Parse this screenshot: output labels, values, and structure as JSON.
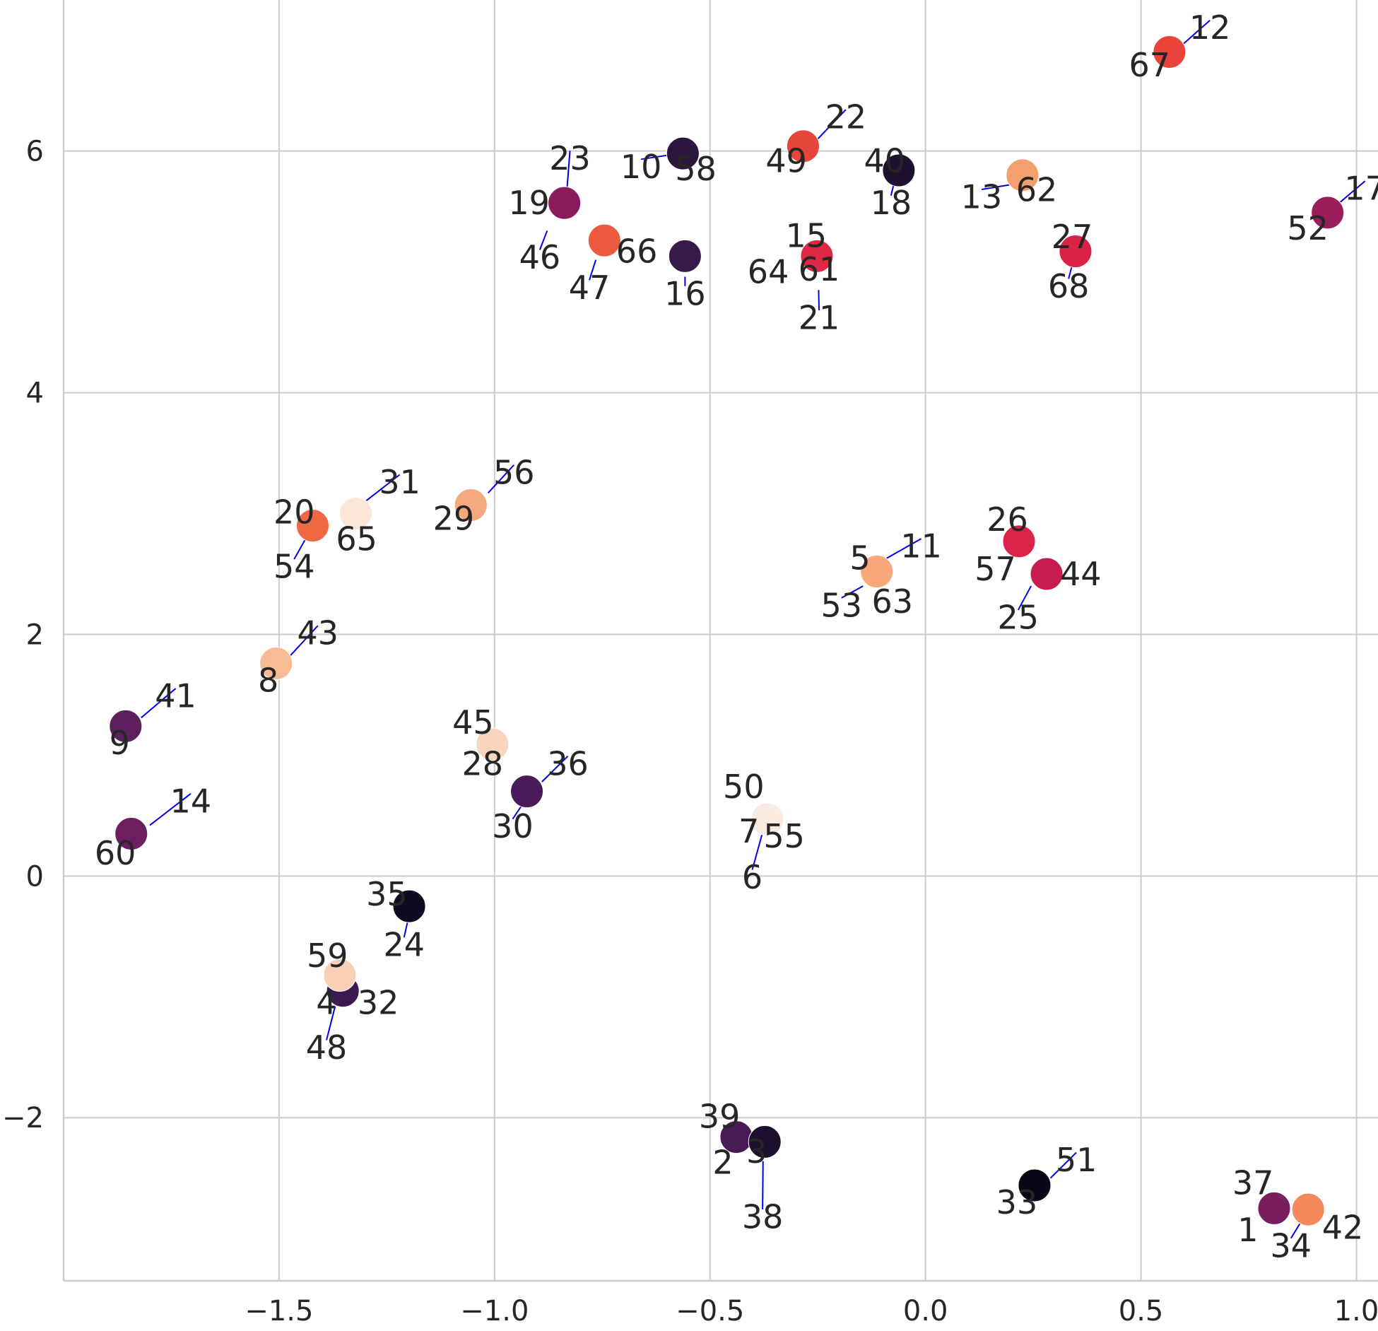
{
  "chart_data": {
    "type": "scatter",
    "title": "",
    "xlabel": "",
    "ylabel": "",
    "xlim": [
      -2.0,
      1.05
    ],
    "ylim": [
      -3.35,
      7.25
    ],
    "grid": true,
    "legend": "none",
    "x_ticks": [
      {
        "value": -1.5,
        "label": "−1.5"
      },
      {
        "value": -1.0,
        "label": "−1.0"
      },
      {
        "value": -0.5,
        "label": "−0.5"
      },
      {
        "value": 0.0,
        "label": "0.0"
      },
      {
        "value": 0.5,
        "label": "0.5"
      },
      {
        "value": 1.0,
        "label": "1.0"
      }
    ],
    "y_ticks": [
      {
        "value": -2,
        "label": "−2"
      },
      {
        "value": 0,
        "label": "0"
      },
      {
        "value": 2,
        "label": "2"
      },
      {
        "value": 4,
        "label": "4"
      },
      {
        "value": 6,
        "label": "6"
      }
    ],
    "points": [
      {
        "x": 0.566,
        "y": 6.82,
        "color": "#e8443a"
      },
      {
        "x": -0.284,
        "y": 6.04,
        "color": "#e4463a"
      },
      {
        "x": -0.563,
        "y": 5.98,
        "color": "#2c1640"
      },
      {
        "x": -0.062,
        "y": 5.84,
        "color": "#1f1030"
      },
      {
        "x": 0.225,
        "y": 5.8,
        "color": "#f4a06e"
      },
      {
        "x": -0.838,
        "y": 5.57,
        "color": "#8a1c5e"
      },
      {
        "x": 0.933,
        "y": 5.49,
        "color": "#9b1d5a"
      },
      {
        "x": -0.745,
        "y": 5.26,
        "color": "#ee5a3f"
      },
      {
        "x": 0.348,
        "y": 5.17,
        "color": "#db2146"
      },
      {
        "x": -0.558,
        "y": 5.13,
        "color": "#361a4a"
      },
      {
        "x": -0.252,
        "y": 5.13,
        "color": "#df2847"
      },
      {
        "x": -1.055,
        "y": 3.07,
        "color": "#f5a97f"
      },
      {
        "x": -1.322,
        "y": 3.0,
        "color": "#fbe6d8"
      },
      {
        "x": -1.422,
        "y": 2.9,
        "color": "#f06843"
      },
      {
        "x": 0.217,
        "y": 2.77,
        "color": "#dc2248"
      },
      {
        "x": -0.113,
        "y": 2.52,
        "color": "#f7a77a"
      },
      {
        "x": 0.281,
        "y": 2.5,
        "color": "#c81b4f"
      },
      {
        "x": -1.507,
        "y": 1.76,
        "color": "#f8bb94"
      },
      {
        "x": -1.856,
        "y": 1.24,
        "color": "#5c1f5d"
      },
      {
        "x": -1.005,
        "y": 1.09,
        "color": "#f9d5be"
      },
      {
        "x": -0.925,
        "y": 0.7,
        "color": "#4a1a5a"
      },
      {
        "x": -1.843,
        "y": 0.35,
        "color": "#6c1e5f"
      },
      {
        "x": -0.367,
        "y": 0.47,
        "color": "#fbeadf"
      },
      {
        "x": -1.198,
        "y": -0.25,
        "color": "#100a22"
      },
      {
        "x": -1.352,
        "y": -0.95,
        "color": "#3b1a50"
      },
      {
        "x": -1.359,
        "y": -0.82,
        "color": "#f9d0b6"
      },
      {
        "x": -0.439,
        "y": -2.16,
        "color": "#4a1a56"
      },
      {
        "x": -0.373,
        "y": -2.2,
        "color": "#1c102e"
      },
      {
        "x": 0.253,
        "y": -2.56,
        "color": "#0a0618"
      },
      {
        "x": 0.809,
        "y": -2.75,
        "color": "#7a1d5e"
      },
      {
        "x": 0.888,
        "y": -2.76,
        "color": "#f48a5c"
      }
    ],
    "labels": [
      {
        "text": "12",
        "x": 0.66,
        "y": 7.0,
        "lx": 0.59,
        "ly": 6.86
      },
      {
        "text": "67",
        "x": 0.52,
        "y": 6.69
      },
      {
        "text": "22",
        "x": -0.185,
        "y": 6.26,
        "lx": -0.25,
        "ly": 6.1
      },
      {
        "text": "49",
        "x": -0.323,
        "y": 5.9
      },
      {
        "text": "10",
        "x": -0.66,
        "y": 5.85,
        "lx": -0.59,
        "ly": 5.97
      },
      {
        "text": "58",
        "x": -0.533,
        "y": 5.83
      },
      {
        "text": "40",
        "x": -0.095,
        "y": 5.9
      },
      {
        "text": "18",
        "x": -0.08,
        "y": 5.55,
        "lx": -0.07,
        "ly": 5.78
      },
      {
        "text": "13",
        "x": 0.13,
        "y": 5.6,
        "lx": 0.195,
        "ly": 5.72
      },
      {
        "text": "62",
        "x": 0.258,
        "y": 5.66
      },
      {
        "text": "23",
        "x": -0.825,
        "y": 5.92,
        "lx": -0.832,
        "ly": 5.68
      },
      {
        "text": "19",
        "x": -0.92,
        "y": 5.55
      },
      {
        "text": "46",
        "x": -0.895,
        "y": 5.1,
        "lx": -0.878,
        "ly": 5.34
      },
      {
        "text": "66",
        "x": -0.67,
        "y": 5.15
      },
      {
        "text": "47",
        "x": -0.78,
        "y": 4.85,
        "lx": -0.765,
        "ly": 5.1
      },
      {
        "text": "16",
        "x": -0.558,
        "y": 4.8,
        "lx": -0.558,
        "ly": 4.96
      },
      {
        "text": "15",
        "x": -0.277,
        "y": 5.28
      },
      {
        "text": "64",
        "x": -0.365,
        "y": 4.98
      },
      {
        "text": "61",
        "x": -0.247,
        "y": 5.0
      },
      {
        "text": "21",
        "x": -0.247,
        "y": 4.6,
        "lx": -0.248,
        "ly": 4.85
      },
      {
        "text": "17",
        "x": 1.02,
        "y": 5.67,
        "lx": 0.96,
        "ly": 5.57
      },
      {
        "text": "52",
        "x": 0.887,
        "y": 5.34
      },
      {
        "text": "27",
        "x": 0.34,
        "y": 5.27
      },
      {
        "text": "68",
        "x": 0.332,
        "y": 4.86,
        "lx": 0.342,
        "ly": 5.08
      },
      {
        "text": "56",
        "x": -0.955,
        "y": 3.32,
        "lx": -1.015,
        "ly": 3.17
      },
      {
        "text": "29",
        "x": -1.095,
        "y": 2.94
      },
      {
        "text": "31",
        "x": -1.22,
        "y": 3.24,
        "lx": -1.3,
        "ly": 3.1
      },
      {
        "text": "20",
        "x": -1.465,
        "y": 2.99
      },
      {
        "text": "65",
        "x": -1.32,
        "y": 2.77
      },
      {
        "text": "54",
        "x": -1.465,
        "y": 2.54,
        "lx": -1.437,
        "ly": 2.8
      },
      {
        "text": "26",
        "x": 0.19,
        "y": 2.93
      },
      {
        "text": "57",
        "x": 0.162,
        "y": 2.52
      },
      {
        "text": "44",
        "x": 0.36,
        "y": 2.48
      },
      {
        "text": "25",
        "x": 0.215,
        "y": 2.12,
        "lx": 0.245,
        "ly": 2.4
      },
      {
        "text": "11",
        "x": -0.01,
        "y": 2.71,
        "lx": -0.095,
        "ly": 2.62
      },
      {
        "text": "5",
        "x": -0.152,
        "y": 2.61
      },
      {
        "text": "53",
        "x": -0.195,
        "y": 2.22,
        "lx": -0.145,
        "ly": 2.4
      },
      {
        "text": "63",
        "x": -0.077,
        "y": 2.25
      },
      {
        "text": "43",
        "x": -1.41,
        "y": 1.99,
        "lx": -1.475,
        "ly": 1.82
      },
      {
        "text": "8",
        "x": -1.525,
        "y": 1.6
      },
      {
        "text": "41",
        "x": -1.74,
        "y": 1.47,
        "lx": -1.82,
        "ly": 1.31
      },
      {
        "text": "9",
        "x": -1.87,
        "y": 1.08
      },
      {
        "text": "45",
        "x": -1.05,
        "y": 1.25
      },
      {
        "text": "28",
        "x": -1.028,
        "y": 0.91
      },
      {
        "text": "36",
        "x": -0.83,
        "y": 0.91,
        "lx": -0.89,
        "ly": 0.78
      },
      {
        "text": "30",
        "x": -0.958,
        "y": 0.39,
        "lx": -0.93,
        "ly": 0.62
      },
      {
        "text": "14",
        "x": -1.705,
        "y": 0.6,
        "lx": -1.8,
        "ly": 0.42
      },
      {
        "text": "60",
        "x": -1.88,
        "y": 0.17
      },
      {
        "text": "50",
        "x": -0.422,
        "y": 0.72
      },
      {
        "text": "7",
        "x": -0.41,
        "y": 0.35
      },
      {
        "text": "55",
        "x": -0.328,
        "y": 0.31
      },
      {
        "text": "6",
        "x": -0.402,
        "y": -0.03,
        "lx": -0.375,
        "ly": 0.4
      },
      {
        "text": "35",
        "x": -1.25,
        "y": -0.17
      },
      {
        "text": "24",
        "x": -1.21,
        "y": -0.59,
        "lx": -1.2,
        "ly": -0.35
      },
      {
        "text": "59",
        "x": -1.388,
        "y": -0.68
      },
      {
        "text": "4",
        "x": -1.39,
        "y": -1.07
      },
      {
        "text": "32",
        "x": -1.27,
        "y": -1.07
      },
      {
        "text": "48",
        "x": -1.39,
        "y": -1.44,
        "lx": -1.37,
        "ly": -1.08
      },
      {
        "text": "39",
        "x": -0.478,
        "y": -2.01
      },
      {
        "text": "2",
        "x": -0.47,
        "y": -2.39
      },
      {
        "text": "3",
        "x": -0.392,
        "y": -2.3
      },
      {
        "text": "38",
        "x": -0.378,
        "y": -2.84,
        "lx": -0.377,
        "ly": -2.36
      },
      {
        "text": "51",
        "x": 0.35,
        "y": -2.37,
        "lx": 0.29,
        "ly": -2.5
      },
      {
        "text": "33",
        "x": 0.212,
        "y": -2.72
      },
      {
        "text": "37",
        "x": 0.76,
        "y": -2.56
      },
      {
        "text": "1",
        "x": 0.748,
        "y": -2.95
      },
      {
        "text": "42",
        "x": 0.968,
        "y": -2.93
      },
      {
        "text": "34",
        "x": 0.848,
        "y": -3.08,
        "lx": 0.875,
        "ly": -2.84
      }
    ]
  }
}
